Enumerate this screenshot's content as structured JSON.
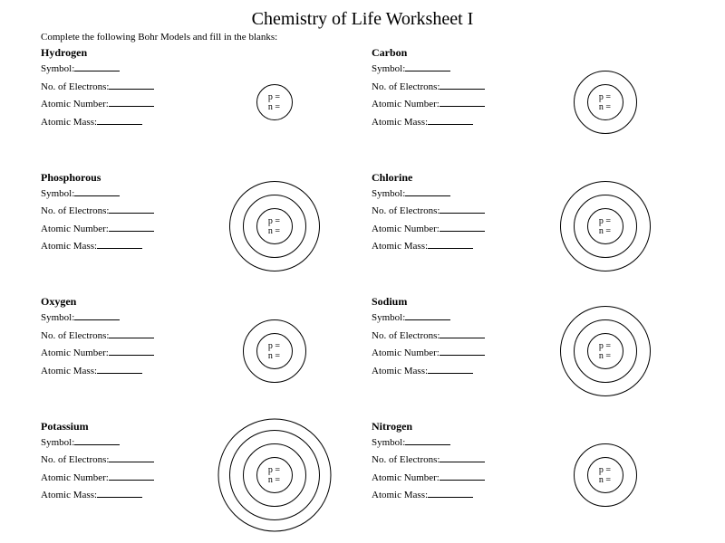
{
  "title": "Chemistry of Life Worksheet I",
  "instruction": "Complete the following Bohr Models and fill in the blanks:",
  "field_labels": {
    "symbol": "Symbol:",
    "electrons": "No. of Electrons:",
    "atomic_number": "Atomic Number:",
    "atomic_mass": "Atomic Mass:"
  },
  "nucleus_lines": {
    "p": "p =",
    "n": "n ="
  },
  "ring_style": {
    "r1": 40,
    "r2": 70,
    "r3": 100,
    "r4": 125,
    "stroke": "#000000",
    "stroke_width": 1
  },
  "colors": {
    "background": "#ffffff",
    "text": "#000000"
  },
  "elements": [
    {
      "name": "Hydrogen",
      "rings": 1
    },
    {
      "name": "Carbon",
      "rings": 2
    },
    {
      "name": "Phosphorous",
      "rings": 3
    },
    {
      "name": "Chlorine",
      "rings": 3
    },
    {
      "name": "Oxygen",
      "rings": 2
    },
    {
      "name": "Sodium",
      "rings": 3
    },
    {
      "name": "Potassium",
      "rings": 4
    },
    {
      "name": "Nitrogen",
      "rings": 2
    }
  ]
}
